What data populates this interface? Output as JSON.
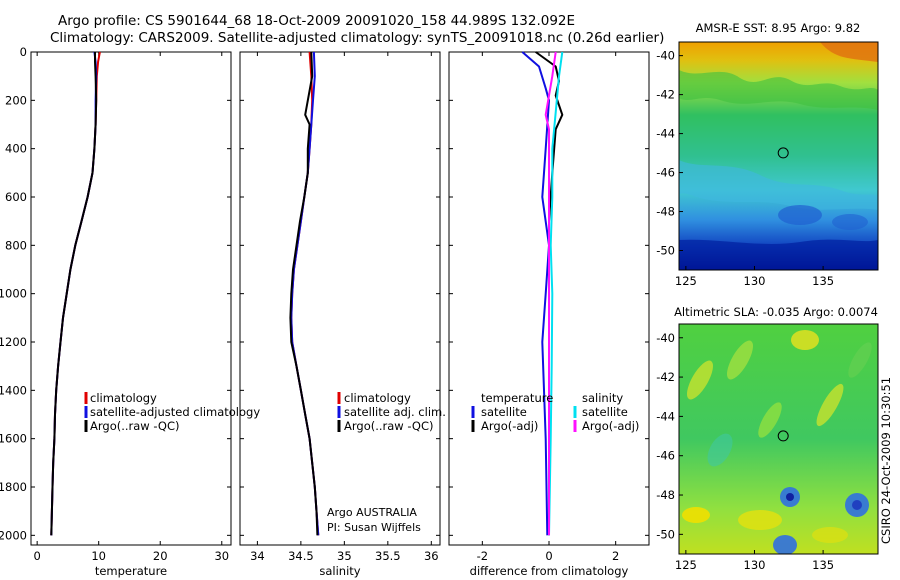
{
  "header": {
    "line1": "Argo profile: CS 5901644_68 18-Oct-2009 20091020_158 44.989S 132.092E",
    "line2": "Climatology: CARS2009. Satellite-adjusted climatology: synTS_20091018.nc (0.26d earlier)"
  },
  "stamp": "CSIRO 24-Oct-2009 10:30:51",
  "colors": {
    "climatology": "#e00000",
    "satellite": "#1010e0",
    "argo": "#000000",
    "sal_satellite": "#00e0f0",
    "sal_argo": "#ff10ff",
    "map_marker": "#000000"
  },
  "chart_data": [
    {
      "type": "line",
      "id": "temperature",
      "xlabel": "temperature",
      "ylabel": "",
      "xlim": [
        -1,
        31.5
      ],
      "ylim": [
        2040,
        0
      ],
      "xticks": [
        0,
        10,
        20,
        30
      ],
      "yticks": [
        0,
        200,
        400,
        600,
        800,
        1000,
        1200,
        1400,
        1600,
        1800,
        2000
      ],
      "series": [
        {
          "name": "climatology",
          "color": "#e00000",
          "points": [
            [
              10.2,
              0
            ],
            [
              9.9,
              40
            ],
            [
              9.7,
              100
            ],
            [
              9.6,
              200
            ],
            [
              9.5,
              300
            ],
            [
              9.3,
              400
            ],
            [
              9,
              500
            ],
            [
              8.2,
              600
            ],
            [
              7.2,
              700
            ],
            [
              6.2,
              800
            ],
            [
              5.4,
              900
            ],
            [
              4.8,
              1000
            ],
            [
              4.2,
              1100
            ],
            [
              3.8,
              1200
            ],
            [
              3.4,
              1300
            ],
            [
              3.1,
              1400
            ],
            [
              2.9,
              1500
            ],
            [
              2.8,
              1600
            ],
            [
              2.6,
              1700
            ],
            [
              2.5,
              1800
            ],
            [
              2.4,
              1900
            ],
            [
              2.3,
              2000
            ]
          ]
        },
        {
          "name": "satellite-adjusted climatology",
          "color": "#1010e0",
          "points": [
            [
              9.3,
              0
            ],
            [
              9.5,
              40
            ],
            [
              9.6,
              100
            ],
            [
              9.5,
              200
            ],
            [
              9.5,
              300
            ],
            [
              9.3,
              400
            ],
            [
              9,
              500
            ],
            [
              8.2,
              600
            ],
            [
              7.2,
              700
            ],
            [
              6.2,
              800
            ],
            [
              5.4,
              900
            ],
            [
              4.8,
              1000
            ],
            [
              4.2,
              1100
            ],
            [
              3.8,
              1200
            ],
            [
              3.4,
              1300
            ],
            [
              3.1,
              1400
            ],
            [
              2.9,
              1500
            ],
            [
              2.8,
              1600
            ],
            [
              2.6,
              1700
            ],
            [
              2.5,
              1800
            ],
            [
              2.4,
              1900
            ],
            [
              2.3,
              2000
            ]
          ]
        },
        {
          "name": "Argo(..raw -QC)",
          "color": "#000000",
          "points": [
            [
              9.4,
              0
            ],
            [
              9.4,
              40
            ],
            [
              9.5,
              100
            ],
            [
              9.6,
              200
            ],
            [
              9.5,
              300
            ],
            [
              9.3,
              400
            ],
            [
              9,
              500
            ],
            [
              8.2,
              600
            ],
            [
              7.2,
              700
            ],
            [
              6.2,
              800
            ],
            [
              5.4,
              900
            ],
            [
              4.8,
              1000
            ],
            [
              4.2,
              1100
            ],
            [
              3.8,
              1200
            ],
            [
              3.4,
              1300
            ],
            [
              3.1,
              1400
            ],
            [
              2.9,
              1500
            ],
            [
              2.8,
              1600
            ],
            [
              2.6,
              1700
            ],
            [
              2.5,
              1800
            ],
            [
              2.4,
              1900
            ],
            [
              2.3,
              2000
            ]
          ]
        }
      ],
      "legend": [
        "climatology",
        "satellite-adjusted climatology",
        "Argo(..raw -QC)"
      ]
    },
    {
      "type": "line",
      "id": "salinity",
      "xlabel": "salinity",
      "ylabel": "",
      "xlim": [
        33.8,
        36.1
      ],
      "ylim": [
        2040,
        0
      ],
      "xticks": [
        34,
        34.5,
        35,
        35.5,
        36
      ],
      "yticks": [],
      "series": [
        {
          "name": "climatology",
          "color": "#e00000",
          "points": [
            [
              34.6,
              0
            ],
            [
              34.62,
              100
            ],
            [
              34.63,
              200
            ],
            [
              34.62,
              300
            ],
            [
              34.6,
              400
            ],
            [
              34.58,
              500
            ],
            [
              34.54,
              600
            ],
            [
              34.5,
              700
            ],
            [
              34.46,
              800
            ],
            [
              34.42,
              900
            ],
            [
              34.4,
              1000
            ],
            [
              34.39,
              1100
            ],
            [
              34.4,
              1200
            ],
            [
              34.45,
              1300
            ],
            [
              34.5,
              1400
            ],
            [
              34.55,
              1500
            ],
            [
              34.6,
              1600
            ],
            [
              34.63,
              1700
            ],
            [
              34.66,
              1800
            ],
            [
              34.68,
              1900
            ],
            [
              34.7,
              2000
            ]
          ]
        },
        {
          "name": "satellite adj. clim.",
          "color": "#1010e0",
          "points": [
            [
              34.65,
              0
            ],
            [
              34.66,
              100
            ],
            [
              34.64,
              200
            ],
            [
              34.62,
              300
            ],
            [
              34.6,
              400
            ],
            [
              34.58,
              500
            ],
            [
              34.54,
              600
            ],
            [
              34.5,
              700
            ],
            [
              34.46,
              800
            ],
            [
              34.42,
              900
            ],
            [
              34.4,
              1000
            ],
            [
              34.39,
              1100
            ],
            [
              34.4,
              1200
            ],
            [
              34.45,
              1300
            ],
            [
              34.5,
              1400
            ],
            [
              34.55,
              1500
            ],
            [
              34.6,
              1600
            ],
            [
              34.63,
              1700
            ],
            [
              34.66,
              1800
            ],
            [
              34.68,
              1900
            ],
            [
              34.7,
              2000
            ]
          ]
        },
        {
          "name": "Argo(..raw -QC)",
          "color": "#000000",
          "points": [
            [
              34.62,
              0
            ],
            [
              34.63,
              100
            ],
            [
              34.55,
              260
            ],
            [
              34.6,
              300
            ],
            [
              34.58,
              400
            ],
            [
              34.58,
              500
            ],
            [
              34.54,
              600
            ],
            [
              34.49,
              700
            ],
            [
              34.45,
              800
            ],
            [
              34.41,
              900
            ],
            [
              34.39,
              1000
            ],
            [
              34.38,
              1100
            ],
            [
              34.39,
              1200
            ],
            [
              34.45,
              1300
            ],
            [
              34.5,
              1400
            ],
            [
              34.55,
              1500
            ],
            [
              34.6,
              1600
            ],
            [
              34.63,
              1700
            ],
            [
              34.66,
              1800
            ],
            [
              34.68,
              1900
            ],
            [
              34.69,
              2000
            ]
          ]
        }
      ],
      "legend": [
        "climatology",
        "satellite adj. clim.",
        "Argo(..raw -QC)"
      ],
      "annotation": [
        "Argo AUSTRALIA",
        "PI: Susan Wijffels"
      ]
    },
    {
      "type": "line",
      "id": "difference",
      "xlabel": "difference from climatology",
      "ylabel": "",
      "xlim": [
        -3,
        3
      ],
      "ylim": [
        2040,
        0
      ],
      "xticks": [
        -2,
        0,
        2
      ],
      "yticks": [],
      "series": [
        {
          "name": "temperature satellite",
          "color": "#1010e0",
          "points": [
            [
              -0.8,
              0
            ],
            [
              -0.3,
              60
            ],
            [
              -0.1,
              150
            ],
            [
              0,
              200
            ],
            [
              -0.1,
              400
            ],
            [
              -0.2,
              600
            ],
            [
              0,
              800
            ],
            [
              -0.1,
              1000
            ],
            [
              -0.2,
              1200
            ],
            [
              -0.1,
              1600
            ],
            [
              -0.05,
              2000
            ]
          ]
        },
        {
          "name": "temperature Argo(-adj)",
          "color": "#000000",
          "points": [
            [
              -0.4,
              0
            ],
            [
              0.2,
              60
            ],
            [
              0.3,
              120
            ],
            [
              0.2,
              180
            ],
            [
              0.4,
              260
            ],
            [
              0.2,
              320
            ],
            [
              0.1,
              500
            ],
            [
              0,
              700
            ],
            [
              0,
              1000
            ],
            [
              0,
              1200
            ],
            [
              0,
              1600
            ],
            [
              0,
              2000
            ]
          ]
        },
        {
          "name": "salinity satellite",
          "color": "#00e0f0",
          "points": [
            [
              0.4,
              0
            ],
            [
              0.3,
              100
            ],
            [
              0.2,
              250
            ],
            [
              0.1,
              400
            ],
            [
              0.1,
              600
            ],
            [
              0.05,
              800
            ],
            [
              0.1,
              1000
            ],
            [
              0.08,
              1300
            ],
            [
              0.05,
              1600
            ],
            [
              0,
              2000
            ]
          ]
        },
        {
          "name": "salinity Argo(-adj)",
          "color": "#ff10ff",
          "points": [
            [
              0.2,
              0
            ],
            [
              0.1,
              100
            ],
            [
              -0.1,
              260
            ],
            [
              0,
              320
            ],
            [
              0,
              500
            ],
            [
              0,
              700
            ],
            [
              0,
              1000
            ],
            [
              0,
              1200
            ],
            [
              0,
              1600
            ],
            [
              0,
              2000
            ]
          ]
        }
      ],
      "legend_headers": [
        "temperature",
        "salinity"
      ],
      "legend": [
        "satellite",
        "Argo(-adj)",
        "satellite",
        "Argo(-adj)"
      ]
    },
    {
      "type": "heatmap",
      "id": "sst-map",
      "title": "AMSR-E SST: 8.95 Argo: 9.82",
      "xlim": [
        124.5,
        139
      ],
      "ylim": [
        -51,
        -39.3
      ],
      "xticks": [
        125,
        130,
        135
      ],
      "yticks": [
        -40,
        -42,
        -44,
        -46,
        -48,
        -50
      ],
      "marker": [
        132.09,
        -44.99
      ]
    },
    {
      "type": "heatmap",
      "id": "sla-map",
      "title": "Altimetric SLA: -0.035 Argo: 0.0074",
      "xlim": [
        124.5,
        139
      ],
      "ylim": [
        -51,
        -39.3
      ],
      "xticks": [
        125,
        130,
        135
      ],
      "yticks": [
        -40,
        -42,
        -44,
        -46,
        -48,
        -50
      ],
      "marker": [
        132.09,
        -44.99
      ]
    }
  ]
}
